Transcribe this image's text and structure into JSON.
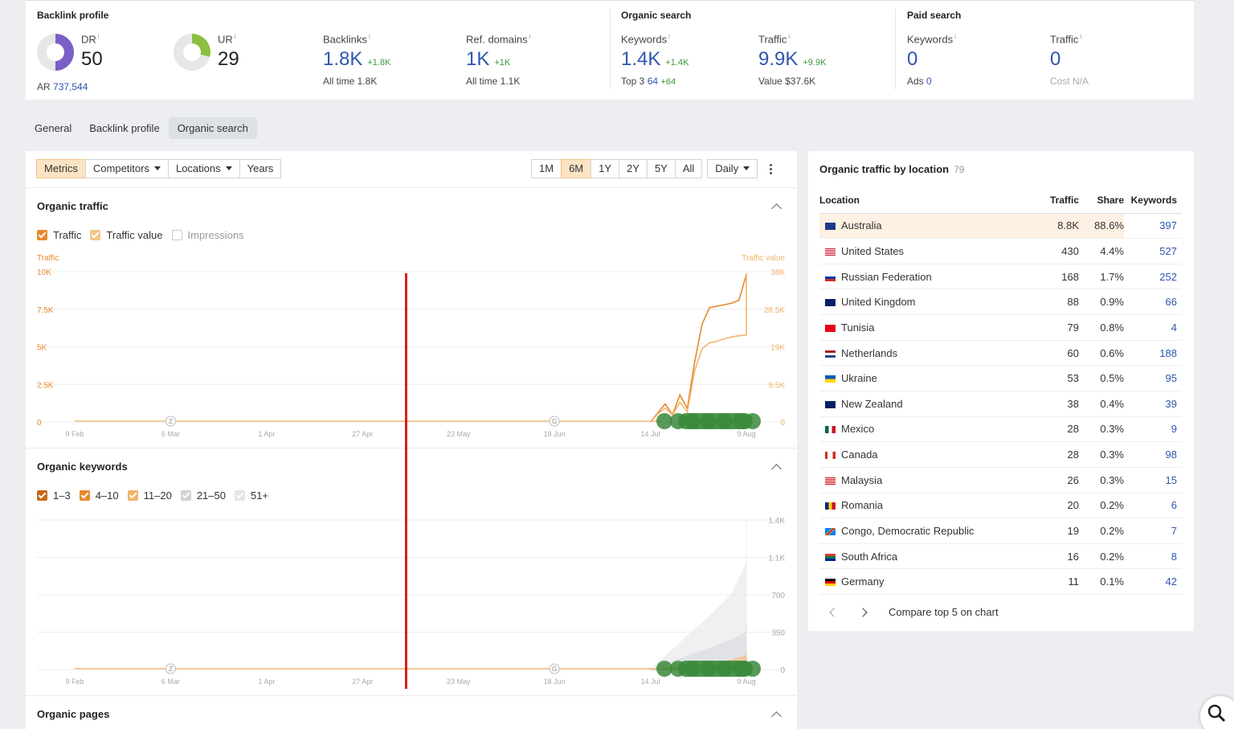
{
  "top": {
    "backlink_title": "Backlink profile",
    "organic_title": "Organic search",
    "paid_title": "Paid search",
    "dr": {
      "label": "DR",
      "value": "50",
      "sub_label": "AR",
      "sub_value": "737,544"
    },
    "ur": {
      "label": "UR",
      "value": "29"
    },
    "backlinks": {
      "label": "Backlinks",
      "value": "1.8K",
      "delta": "+1.8K",
      "sub": "All time  1.8K"
    },
    "ref_domains": {
      "label": "Ref. domains",
      "value": "1K",
      "delta": "+1K",
      "sub": "All time  1.1K"
    },
    "keywords": {
      "label": "Keywords",
      "value": "1.4K",
      "delta": "+1.4K",
      "sub_label": "Top 3",
      "sub_value": "64",
      "sub_delta": "+64"
    },
    "traffic": {
      "label": "Traffic",
      "value": "9.9K",
      "delta": "+9.9K",
      "sub": "Value  $37.6K"
    },
    "paid_keywords": {
      "label": "Keywords",
      "value": "0",
      "sub_label": "Ads",
      "sub_value": "0"
    },
    "paid_traffic": {
      "label": "Traffic",
      "value": "0",
      "sub": "Cost  N/A"
    },
    "info_mark": "i"
  },
  "tabs": [
    "General",
    "Backlink profile",
    "Organic search"
  ],
  "toolbar": {
    "metrics": "Metrics",
    "competitors": "Competitors",
    "locations": "Locations",
    "years": "Years",
    "ranges": [
      "1M",
      "6M",
      "1Y",
      "2Y",
      "5Y",
      "All"
    ],
    "interval": "Daily"
  },
  "organic_traffic": {
    "title": "Organic traffic",
    "checks": [
      "Traffic",
      "Traffic value",
      "Impressions"
    ],
    "left_axis_title": "Traffic",
    "right_axis_title": "Traffic value"
  },
  "organic_keywords": {
    "title": "Organic keywords",
    "checks": [
      "1–3",
      "4–10",
      "11–20",
      "21–50",
      "51+"
    ]
  },
  "organic_pages": {
    "title": "Organic pages"
  },
  "chart_data": [
    {
      "type": "line",
      "title": "Organic traffic",
      "x_ticks": [
        "9 Feb",
        "6 Mar",
        "1 Apr",
        "27 Apr",
        "23 May",
        "18 Jun",
        "14 Jul",
        "9 Aug"
      ],
      "y_left_ticks": [
        "0",
        "2.5K",
        "5K",
        "7.5K",
        "10K"
      ],
      "y_right_ticks": [
        "0",
        "9.5K",
        "19K",
        "28.5K",
        "38K"
      ],
      "ylim_left": [
        0,
        10000
      ],
      "ylim_right": [
        0,
        38000
      ],
      "series": [
        {
          "name": "Traffic",
          "color": "#e8892b",
          "axis": "left",
          "x": [
            "14 Jul",
            "16 Jul",
            "18 Jul",
            "20 Jul",
            "22 Jul",
            "24 Jul",
            "26 Jul",
            "28 Jul",
            "30 Jul",
            "1 Aug",
            "3 Aug",
            "5 Aug",
            "7 Aug",
            "9 Aug",
            "11 Aug"
          ],
          "y": [
            0,
            600,
            1200,
            500,
            1800,
            900,
            4000,
            6500,
            7600,
            7700,
            7800,
            7900,
            8100,
            9800,
            9900
          ]
        },
        {
          "name": "Traffic value",
          "color": "#f2b46d",
          "axis": "right",
          "x": [
            "14 Jul",
            "16 Jul",
            "18 Jul",
            "20 Jul",
            "22 Jul",
            "24 Jul",
            "26 Jul",
            "28 Jul",
            "30 Jul",
            "1 Aug",
            "3 Aug",
            "5 Aug",
            "7 Aug",
            "9 Aug",
            "11 Aug"
          ],
          "y": [
            0,
            2000,
            3500,
            1800,
            5000,
            2500,
            13000,
            18500,
            20000,
            20400,
            21000,
            21500,
            21800,
            22000,
            37600
          ]
        }
      ]
    },
    {
      "type": "area",
      "title": "Organic keywords",
      "x_ticks": [
        "9 Feb",
        "6 Mar",
        "1 Apr",
        "27 Apr",
        "23 May",
        "18 Jun",
        "14 Jul",
        "9 Aug"
      ],
      "y_ticks": [
        "0",
        "350",
        "700",
        "1.1K",
        "1.4K"
      ],
      "ylim": [
        0,
        1400
      ],
      "series": [
        {
          "name": "51+",
          "color": "#e3e5e8",
          "x": [
            "14 Jul",
            "22 Jul",
            "30 Jul",
            "5 Aug",
            "9 Aug",
            "11 Aug"
          ],
          "y": [
            0,
            250,
            500,
            700,
            1000,
            1400
          ]
        },
        {
          "name": "21–50",
          "color": "#d6d8dc",
          "x": [
            "14 Jul",
            "22 Jul",
            "30 Jul",
            "5 Aug",
            "9 Aug",
            "11 Aug"
          ],
          "y": [
            0,
            100,
            200,
            280,
            350,
            430
          ]
        },
        {
          "name": "11–20",
          "color": "#f2b46d",
          "x": [
            "14 Jul",
            "22 Jul",
            "30 Jul",
            "5 Aug",
            "9 Aug",
            "11 Aug"
          ],
          "y": [
            0,
            30,
            50,
            90,
            130,
            170
          ]
        },
        {
          "name": "4–10",
          "color": "#e8892b",
          "x": [
            "14 Jul",
            "22 Jul",
            "30 Jul",
            "5 Aug",
            "9 Aug",
            "11 Aug"
          ],
          "y": [
            0,
            15,
            25,
            50,
            80,
            110
          ]
        },
        {
          "name": "1–3",
          "color": "#c46a1c",
          "x": [
            "14 Jul",
            "22 Jul",
            "30 Jul",
            "5 Aug",
            "9 Aug",
            "11 Aug"
          ],
          "y": [
            0,
            5,
            10,
            25,
            40,
            64
          ]
        }
      ]
    }
  ],
  "locations": {
    "title": "Organic traffic by location",
    "count": "79",
    "headers": [
      "Location",
      "Traffic",
      "Share",
      "Keywords"
    ],
    "rows": [
      {
        "country": "Australia",
        "traffic": "8.8K",
        "share": "88.6%",
        "keywords": "397",
        "flag": "au"
      },
      {
        "country": "United States",
        "traffic": "430",
        "share": "4.4%",
        "keywords": "527",
        "flag": "us"
      },
      {
        "country": "Russian Federation",
        "traffic": "168",
        "share": "1.7%",
        "keywords": "252",
        "flag": "ru"
      },
      {
        "country": "United Kingdom",
        "traffic": "88",
        "share": "0.9%",
        "keywords": "66",
        "flag": "gb"
      },
      {
        "country": "Tunisia",
        "traffic": "79",
        "share": "0.8%",
        "keywords": "4",
        "flag": "tn"
      },
      {
        "country": "Netherlands",
        "traffic": "60",
        "share": "0.6%",
        "keywords": "188",
        "flag": "nl"
      },
      {
        "country": "Ukraine",
        "traffic": "53",
        "share": "0.5%",
        "keywords": "95",
        "flag": "ua"
      },
      {
        "country": "New Zealand",
        "traffic": "38",
        "share": "0.4%",
        "keywords": "39",
        "flag": "nz"
      },
      {
        "country": "Mexico",
        "traffic": "28",
        "share": "0.3%",
        "keywords": "9",
        "flag": "mx"
      },
      {
        "country": "Canada",
        "traffic": "28",
        "share": "0.3%",
        "keywords": "98",
        "flag": "ca"
      },
      {
        "country": "Malaysia",
        "traffic": "26",
        "share": "0.3%",
        "keywords": "15",
        "flag": "my"
      },
      {
        "country": "Romania",
        "traffic": "20",
        "share": "0.2%",
        "keywords": "6",
        "flag": "ro"
      },
      {
        "country": "Congo, Democratic Republic",
        "traffic": "19",
        "share": "0.2%",
        "keywords": "7",
        "flag": "cd"
      },
      {
        "country": "South Africa",
        "traffic": "16",
        "share": "0.2%",
        "keywords": "8",
        "flag": "za"
      },
      {
        "country": "Germany",
        "traffic": "11",
        "share": "0.1%",
        "keywords": "42",
        "flag": "de"
      }
    ],
    "compare_label": "Compare top 5 on chart"
  },
  "annotation_markers": [
    "Z",
    "G"
  ],
  "colors": {
    "accent": "#e8892b",
    "link": "#2e56b0",
    "positive": "#3a9a3a",
    "annotation_line": "#e01b1b",
    "event_markers": "#3a8a3a"
  }
}
